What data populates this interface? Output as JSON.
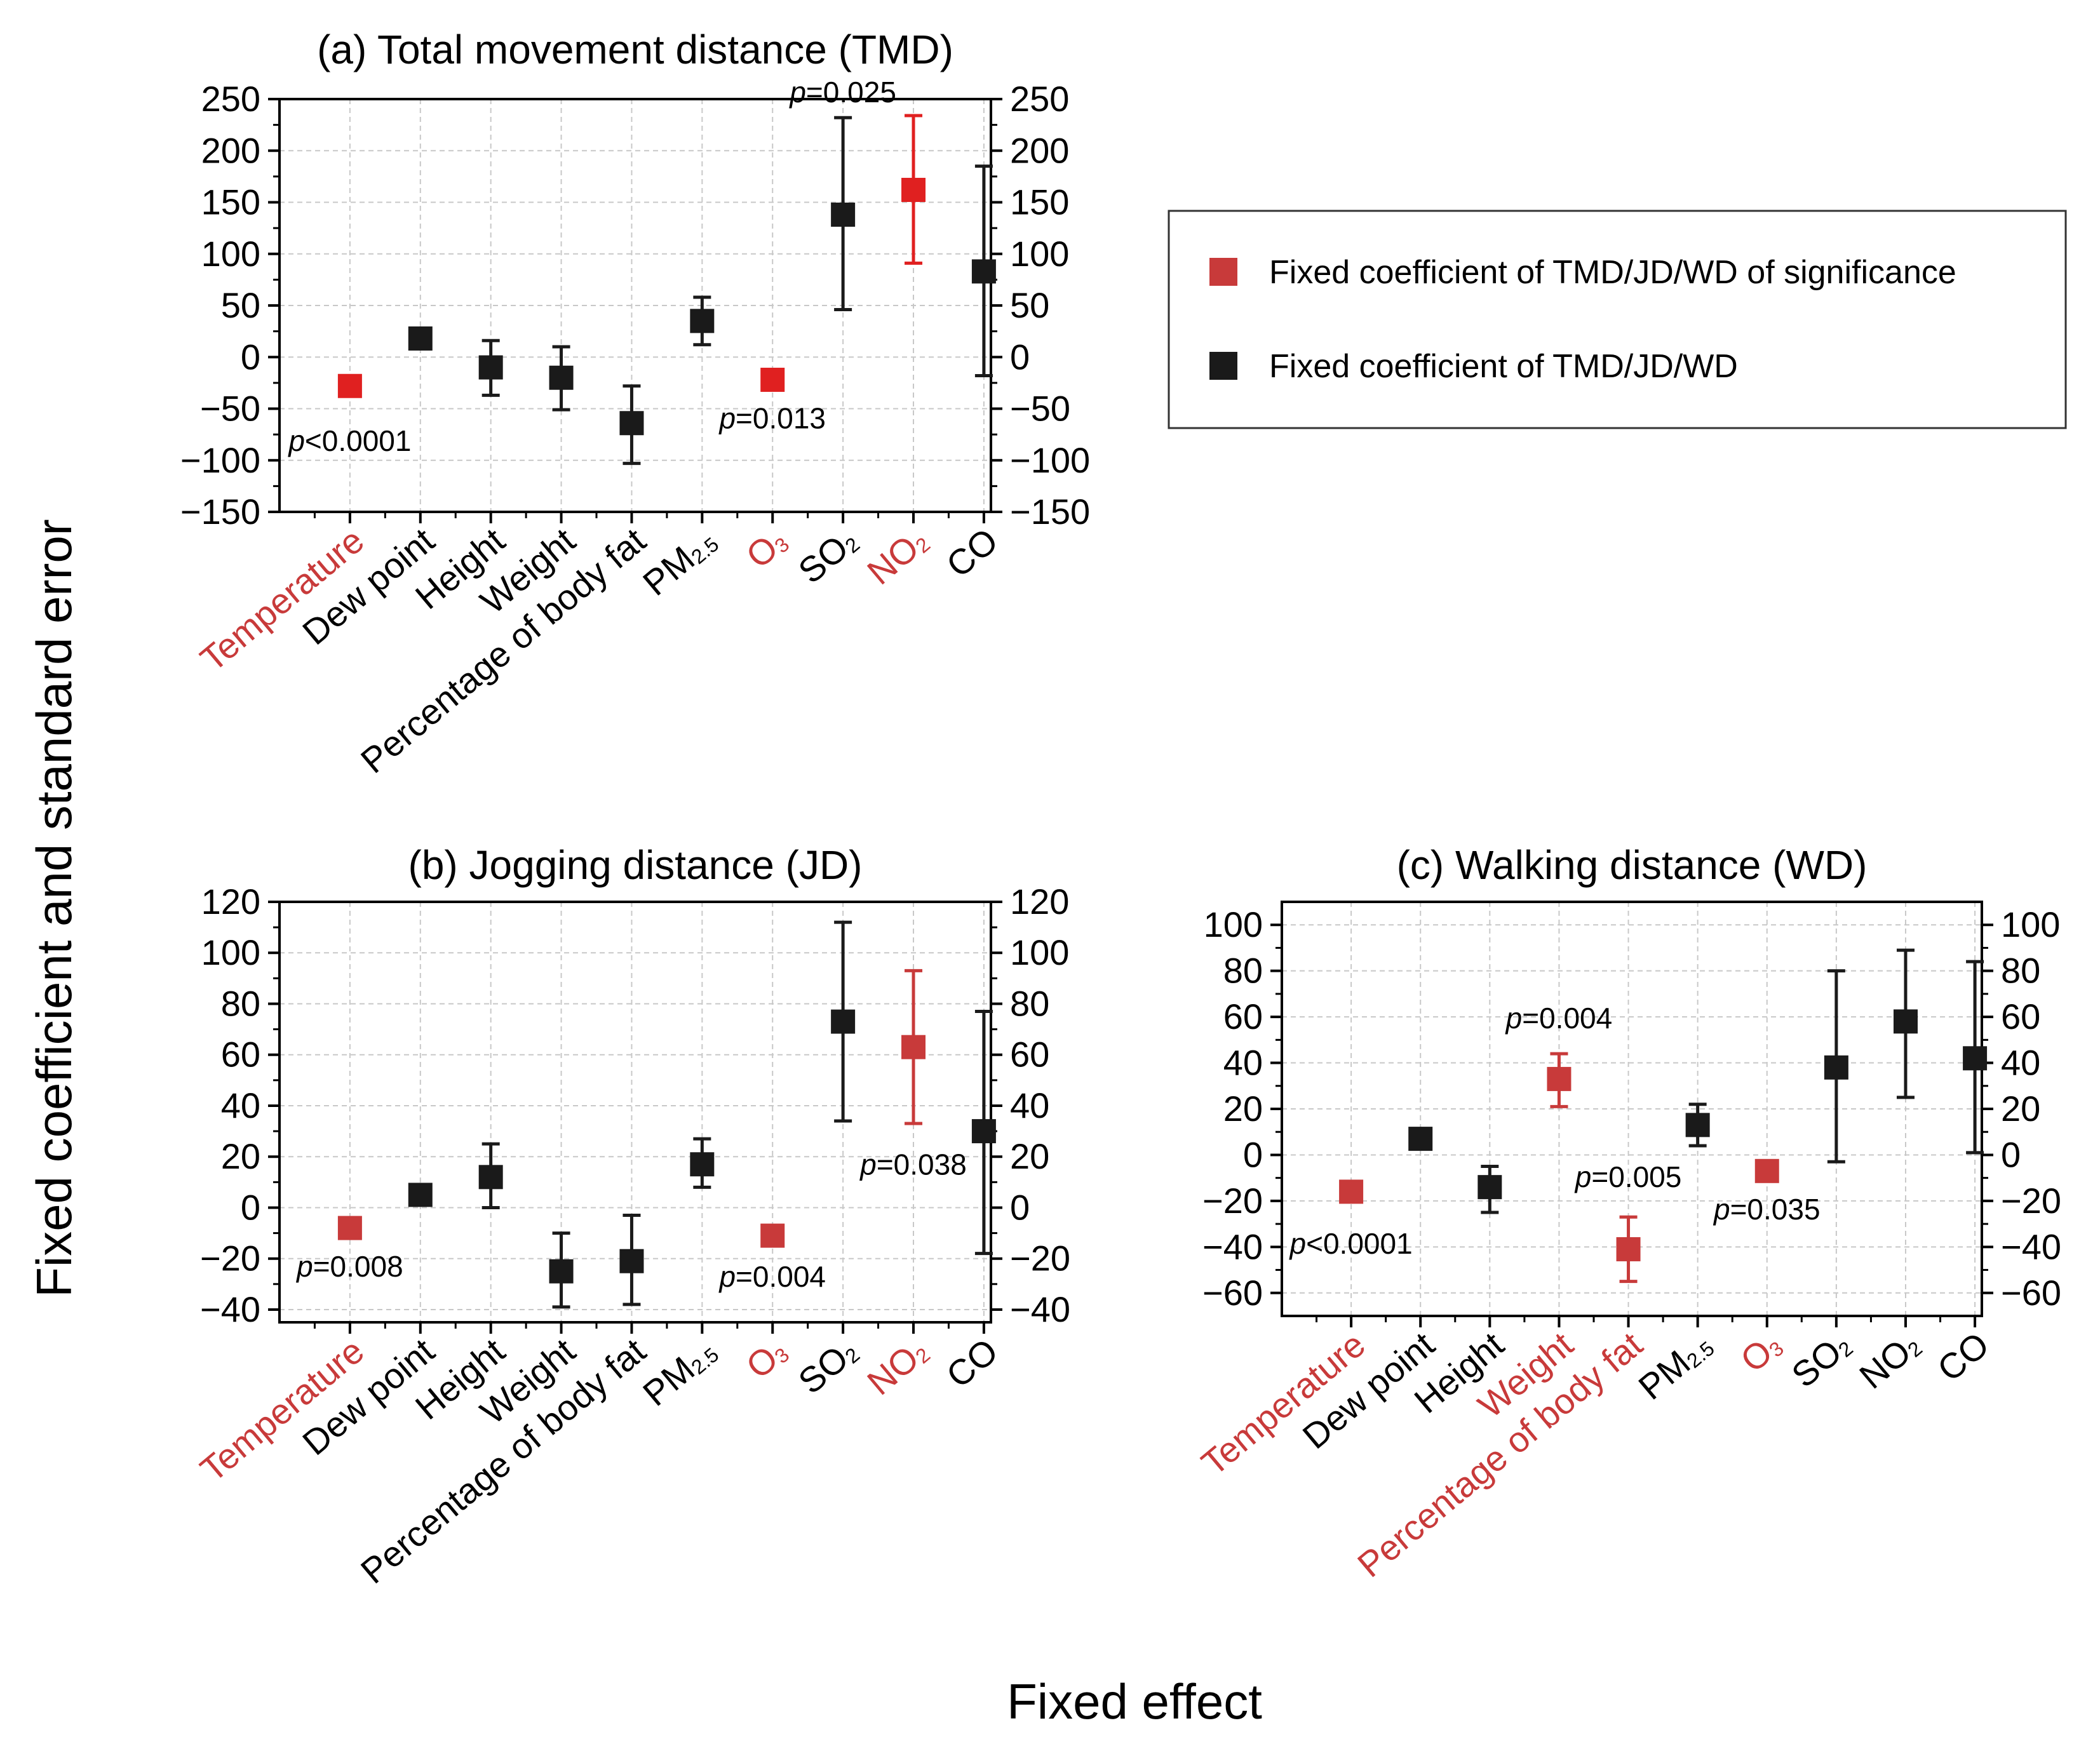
{
  "figure": {
    "ylabel": "Fixed coefficient and standard error",
    "xlabel": "Fixed effect",
    "colors": {
      "significant": "#c83a3a",
      "significant_bright": "#e02020",
      "normal": "#1a1a1a",
      "grid": "#c8c8c8"
    }
  },
  "legend": {
    "items": [
      {
        "label": "Fixed coefficient of TMD/JD/WD of significance",
        "color": "#c83a3a"
      },
      {
        "label": "Fixed coefficient of TMD/JD/WD",
        "color": "#1a1a1a"
      }
    ]
  },
  "chart_data": [
    {
      "type": "scatter",
      "title": "(a) Total movement distance (TMD)",
      "ylim": [
        -150,
        250
      ],
      "yticks": [
        -150,
        -100,
        -50,
        0,
        50,
        100,
        150,
        200,
        250
      ],
      "categories": [
        {
          "label": "Temperature",
          "significant": true
        },
        {
          "label": "Dew point",
          "significant": false
        },
        {
          "label": "Height",
          "significant": false
        },
        {
          "label": "Weight",
          "significant": false
        },
        {
          "label": "Percentage of body fat",
          "significant": false
        },
        {
          "label": "PM",
          "sub": "2.5",
          "significant": false
        },
        {
          "label": "O",
          "sub": "3",
          "significant": true
        },
        {
          "label": "SO",
          "sub": "2",
          "significant": false
        },
        {
          "label": "NO",
          "sub": "2",
          "significant": true
        },
        {
          "label": "CO",
          "significant": false
        }
      ],
      "values": [
        -28,
        18,
        -10,
        -20,
        -64,
        35,
        -22,
        138,
        162,
        83
      ],
      "errors": [
        [
          -28,
          -28
        ],
        [
          18,
          18
        ],
        [
          -37,
          16
        ],
        [
          -51,
          10
        ],
        [
          -103,
          -28
        ],
        [
          12,
          58
        ],
        [
          -22,
          -22
        ],
        [
          46,
          232
        ],
        [
          91,
          234
        ],
        [
          -18,
          185
        ]
      ],
      "annotations": [
        {
          "p": "p",
          "rest": "<0.0001",
          "cat": 0,
          "y": -91
        },
        {
          "p": "p",
          "rest": "=0.013",
          "cat": 6,
          "y": -69
        },
        {
          "p": "p",
          "rest": "=0.025",
          "cat": 7,
          "y": 247
        }
      ]
    },
    {
      "type": "scatter",
      "title": "(b) Jogging distance (JD)",
      "ylim": [
        -45,
        120
      ],
      "yticks": [
        -40,
        -20,
        0,
        20,
        40,
        60,
        80,
        100,
        120
      ],
      "categories": [
        {
          "label": "Temperature",
          "significant": true
        },
        {
          "label": "Dew point",
          "significant": false
        },
        {
          "label": "Height",
          "significant": false
        },
        {
          "label": "Weight",
          "significant": false
        },
        {
          "label": "Percentage of body fat",
          "significant": false
        },
        {
          "label": "PM",
          "sub": "2.5",
          "significant": false
        },
        {
          "label": "O",
          "sub": "3",
          "significant": true
        },
        {
          "label": "SO",
          "sub": "2",
          "significant": false
        },
        {
          "label": "NO",
          "sub": "2",
          "significant": true
        },
        {
          "label": "CO",
          "significant": false
        }
      ],
      "values": [
        -8,
        5,
        12,
        -25,
        -21,
        17,
        -11,
        73,
        63,
        30
      ],
      "errors": [
        [
          -8,
          -8
        ],
        [
          5,
          5
        ],
        [
          0,
          25
        ],
        [
          -39,
          -10
        ],
        [
          -38,
          -3
        ],
        [
          8,
          27
        ],
        [
          -11,
          -11
        ],
        [
          34,
          112
        ],
        [
          33,
          93
        ],
        [
          -18,
          77
        ]
      ],
      "annotations": [
        {
          "p": "p",
          "rest": "=0.008",
          "cat": 0,
          "y": -27
        },
        {
          "p": "p",
          "rest": "=0.004",
          "cat": 6,
          "y": -31
        },
        {
          "p": "p",
          "rest": "=0.038",
          "cat": 8,
          "y": 13
        }
      ]
    },
    {
      "type": "scatter",
      "title": "(c) Walking distance (WD)",
      "ylim": [
        -70,
        110
      ],
      "yticks": [
        -60,
        -40,
        -20,
        0,
        20,
        40,
        60,
        80,
        100
      ],
      "categories": [
        {
          "label": "Temperature",
          "significant": true
        },
        {
          "label": "Dew point",
          "significant": false
        },
        {
          "label": "Height",
          "significant": false
        },
        {
          "label": "Weight",
          "significant": true
        },
        {
          "label": "Percentage of body fat",
          "significant": true
        },
        {
          "label": "PM",
          "sub": "2.5",
          "significant": false
        },
        {
          "label": "O",
          "sub": "3",
          "significant": true
        },
        {
          "label": "SO",
          "sub": "2",
          "significant": false
        },
        {
          "label": "NO",
          "sub": "2",
          "significant": false
        },
        {
          "label": "CO",
          "significant": false
        }
      ],
      "values": [
        -16,
        7,
        -14,
        33,
        -41,
        13,
        -7,
        38,
        58,
        42
      ],
      "errors": [
        [
          -16,
          -16
        ],
        [
          7,
          7
        ],
        [
          -25,
          -5
        ],
        [
          21,
          44
        ],
        [
          -55,
          -27
        ],
        [
          4,
          22
        ],
        [
          -7,
          -7
        ],
        [
          -3,
          80
        ],
        [
          25,
          89
        ],
        [
          1,
          84
        ]
      ],
      "annotations": [
        {
          "p": "p",
          "rest": "<0.0001",
          "cat": 0,
          "y": -43
        },
        {
          "p": "p",
          "rest": "=0.004",
          "cat": 3,
          "y": 55
        },
        {
          "p": "p",
          "rest": "=0.005",
          "cat": 4,
          "y": -14
        },
        {
          "p": "p",
          "rest": "=0.035",
          "cat": 6,
          "y": -28
        }
      ]
    }
  ]
}
